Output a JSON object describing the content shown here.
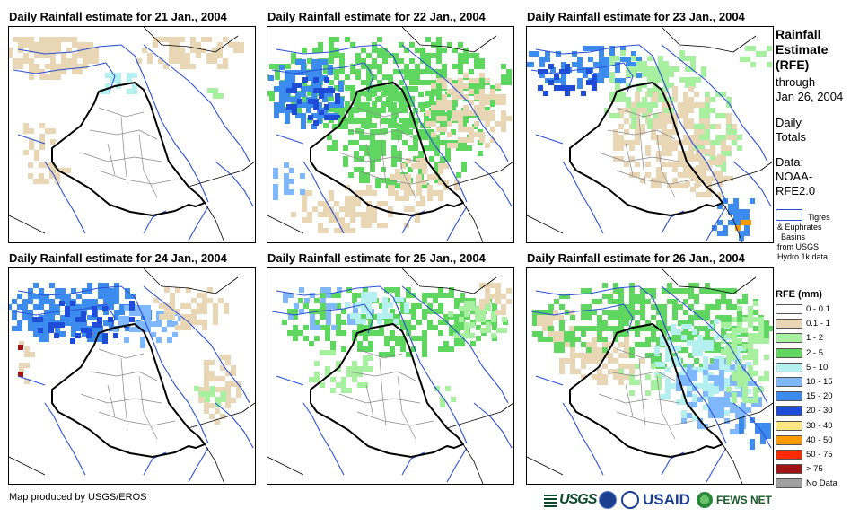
{
  "panels": [
    {
      "title": "Daily Rainfall estimate for 21 Jan., 2004"
    },
    {
      "title": "Daily Rainfall estimate for 22 Jan., 2004"
    },
    {
      "title": "Daily Rainfall estimate for 23 Jan., 2004"
    },
    {
      "title": "Daily Rainfall estimate for 24 Jan., 2004"
    },
    {
      "title": "Daily Rainfall estimate for 25 Jan., 2004"
    },
    {
      "title": "Daily Rainfall estimate for 26 Jan., 2004"
    }
  ],
  "sidebar": {
    "heading": [
      "Rainfall",
      "Estimate",
      "(RFE)"
    ],
    "through": [
      "through",
      "Jan 26, 2004"
    ],
    "totals": [
      "Daily",
      "Totals"
    ],
    "data_source": [
      "Data:",
      "NOAA-",
      "RFE2.0"
    ],
    "basin_key": {
      "label_first": "Tigres",
      "label_rest": [
        "& Euphrates",
        "Basins",
        "from USGS",
        "Hydro 1k data"
      ],
      "color": "#2b4fd6"
    }
  },
  "legend": {
    "title": "RFE (mm)",
    "items": [
      {
        "label": "0 - 0.1",
        "color": "#ffffff"
      },
      {
        "label": "0.1 - 1",
        "color": "#e9d6b4"
      },
      {
        "label": "1 - 2",
        "color": "#a6f0a0"
      },
      {
        "label": "2 - 5",
        "color": "#5fd65f"
      },
      {
        "label": "5 - 10",
        "color": "#b4f0f0"
      },
      {
        "label": "10 - 15",
        "color": "#7fb8ff"
      },
      {
        "label": "15 - 20",
        "color": "#3c8cf0"
      },
      {
        "label": "20 - 30",
        "color": "#1e4bd8"
      },
      {
        "label": "30 - 40",
        "color": "#ffe680"
      },
      {
        "label": "40 - 50",
        "color": "#ff9a00"
      },
      {
        "label": "50 - 75",
        "color": "#ff2a00"
      },
      {
        "label": "> 75",
        "color": "#a01414"
      },
      {
        "label": "No Data",
        "color": "#a0a0a0"
      }
    ]
  },
  "footer": {
    "credit": "Map produced by USGS/EROS"
  },
  "logos": {
    "usgs": "USGS",
    "usaid": "USAID",
    "fews": "FEWS NET"
  }
}
